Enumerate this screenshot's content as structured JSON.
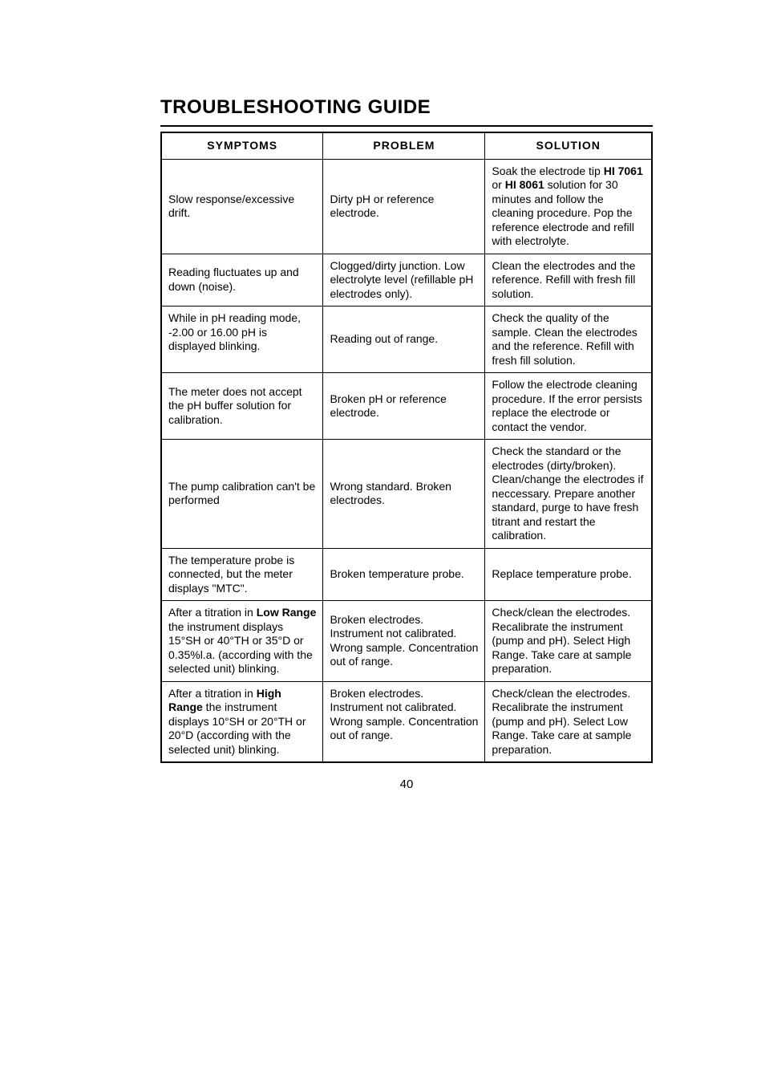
{
  "title": "TROUBLESHOOTING GUIDE",
  "columns": {
    "c1": "SYMPTOMS",
    "c2": "PROBLEM",
    "c3": "SOLUTION"
  },
  "rows": {
    "r0": {
      "symptom": "Slow response/excessive drift.",
      "problem": "Dirty pH or reference electrode.",
      "solution_pre": "Soak the electrode tip ",
      "solution_b1": "HI 7061",
      "solution_mid": " or ",
      "solution_b2": "HI 8061",
      "solution_post": " solution for 30 minutes and follow the cleaning procedure. Pop the reference electrode and refill with electrolyte."
    },
    "r1": {
      "symptom": "Reading fluctuates up and down (noise).",
      "problem": "Clogged/dirty junction. Low electrolyte level (refillable pH electrodes only).",
      "solution": "Clean the electrodes and the reference. Refill with fresh fill solution."
    },
    "r2": {
      "symptom": "While in pH reading mode, -2.00 or 16.00 pH is displayed blinking.",
      "problem": "Reading out of range.",
      "solution": "Check the quality of the sample. Clean the electrodes and the reference. Refill with fresh fill solution."
    },
    "r3": {
      "symptom": "The meter does not accept the pH buffer solution for calibration.",
      "problem": "Broken pH or reference electrode.",
      "solution": "Follow the electrode cleaning procedure. If the error persists replace the electrode or contact the vendor."
    },
    "r4": {
      "symptom": "The pump calibration can't be performed",
      "problem": "Wrong standard. Broken electrodes.",
      "solution": "Check the standard or the electrodes (dirty/broken). Clean/change the electrodes if neccessary. Prepare another standard, purge to have fresh titrant and restart the calibration."
    },
    "r5": {
      "symptom": "The temperature probe is connected, but the meter displays \"MTC\".",
      "problem": "Broken temperature probe.",
      "solution": "Replace temperature probe."
    },
    "r6": {
      "symptom_pre": "After a titration in ",
      "symptom_b1": "Low Range",
      "symptom_post": " the instrument displays 15°SH or 40°TH or 35°D or 0.35%l.a. (according with the selected unit) blinking.",
      "problem": "Broken electrodes. Instrument not calibrated. Wrong sample. Concentration out of range.",
      "solution": "Check/clean the electrodes. Recalibrate the instrument (pump and pH). Select High Range. Take care at sample preparation."
    },
    "r7": {
      "symptom_pre": "After a titration in ",
      "symptom_b1": "High Range",
      "symptom_post": " the instrument displays 10°SH or 20°TH or 20°D (according with the selected unit) blinking.",
      "problem": "Broken electrodes. Instrument not calibrated. Wrong sample. Concentration out of range.",
      "solution": "Check/clean the electrodes. Recalibrate the instrument (pump and pH). Select Low Range. Take care at sample preparation."
    }
  },
  "page_number": "40"
}
